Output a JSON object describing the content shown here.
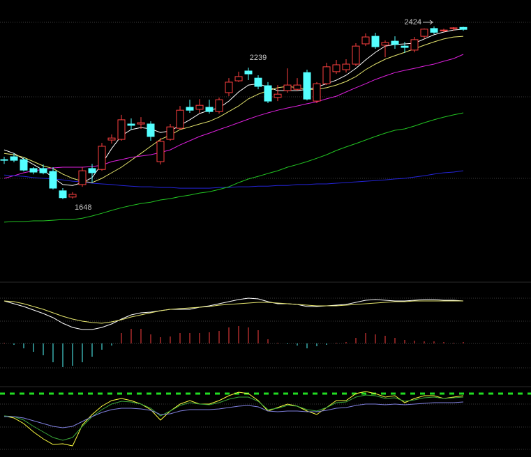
{
  "chart_data": [
    {
      "type": "candlestick",
      "open": [
        1826,
        1839,
        1826,
        1786,
        1786,
        1773,
        1686,
        1658,
        1714,
        1786,
        1782,
        1914,
        1917,
        1986,
        1986,
        1986,
        1817,
        1917,
        1967,
        2061,
        2052,
        2061,
        2042,
        2127,
        2180,
        2224,
        2192,
        2158,
        2105,
        2136,
        2142,
        2217,
        2089,
        2167,
        2221,
        2230,
        2255,
        2346,
        2380,
        2340,
        2358,
        2336,
        2318,
        2380,
        2415,
        2405,
        2415,
        2420
      ],
      "high": [
        1839,
        1854,
        1836,
        1792,
        1804,
        1792,
        1698,
        1680,
        1792,
        1807,
        1901,
        1939,
        2027,
        2011,
        2017,
        1998,
        1923,
        1986,
        2067,
        2095,
        2098,
        2095,
        2105,
        2192,
        2221,
        2239,
        2205,
        2174,
        2161,
        2236,
        2192,
        2230,
        2174,
        2261,
        2274,
        2277,
        2349,
        2393,
        2396,
        2361,
        2380,
        2355,
        2377,
        2415,
        2424,
        2414,
        2421,
        2423
      ],
      "low": [
        1807,
        1814,
        1773,
        1760,
        1760,
        1692,
        1648,
        1651,
        1704,
        1723,
        1776,
        1898,
        1911,
        1961,
        1964,
        1911,
        1804,
        1911,
        1961,
        2036,
        2036,
        2033,
        2033,
        2111,
        2174,
        2183,
        2142,
        2080,
        2089,
        2127,
        2136,
        2092,
        2080,
        2161,
        2211,
        2217,
        2246,
        2336,
        2324,
        2286,
        2324,
        2305,
        2308,
        2368,
        2390,
        2399,
        2405,
        2405
      ],
      "close": [
        1823,
        1823,
        1779,
        1770,
        1767,
        1698,
        1655,
        1670,
        1776,
        1767,
        1886,
        1923,
        2005,
        1980,
        1992,
        1930,
        1908,
        1973,
        2048,
        2048,
        2070,
        2042,
        2095,
        2174,
        2199,
        2211,
        2155,
        2089,
        2120,
        2161,
        2161,
        2098,
        2167,
        2243,
        2252,
        2255,
        2336,
        2377,
        2333,
        2352,
        2343,
        2330,
        2365,
        2412,
        2398,
        2408,
        2418,
        2411
      ],
      "up_color": "#ff4040",
      "down_color": "#54ffff",
      "lines": [
        {
          "color": "#ffffff",
          "values": [
            1870,
            1854,
            1829,
            1804,
            1779,
            1745,
            1714,
            1710,
            1723,
            1745,
            1807,
            1876,
            1933,
            1961,
            1970,
            1964,
            1948,
            1955,
            1980,
            2005,
            2033,
            2048,
            2058,
            2089,
            2130,
            2161,
            2167,
            2152,
            2136,
            2136,
            2136,
            2142,
            2152,
            2167,
            2183,
            2205,
            2236,
            2274,
            2308,
            2336,
            2343,
            2346,
            2349,
            2368,
            2387,
            2399,
            2408,
            2412
          ]
        },
        {
          "color": "#e6e66e",
          "values": [
            1854,
            1848,
            1836,
            1817,
            1798,
            1786,
            1761,
            1742,
            1729,
            1723,
            1742,
            1767,
            1792,
            1823,
            1854,
            1886,
            1917,
            1936,
            1961,
            1973,
            1986,
            1998,
            2017,
            2042,
            2067,
            2099,
            2120,
            2136,
            2149,
            2155,
            2149,
            2142,
            2142,
            2149,
            2161,
            2177,
            2199,
            2230,
            2255,
            2277,
            2293,
            2308,
            2324,
            2340,
            2355,
            2368,
            2377,
            2380
          ]
        },
        {
          "color": "#e020e0",
          "values": [
            1742,
            1754,
            1767,
            1776,
            1782,
            1789,
            1792,
            1792,
            1792,
            1795,
            1801,
            1817,
            1826,
            1836,
            1842,
            1848,
            1858,
            1870,
            1892,
            1911,
            1930,
            1945,
            1961,
            1976,
            1992,
            2008,
            2023,
            2036,
            2048,
            2058,
            2067,
            2077,
            2086,
            2099,
            2111,
            2130,
            2149,
            2167,
            2186,
            2202,
            2217,
            2227,
            2236,
            2246,
            2255,
            2268,
            2280,
            2299
          ]
        },
        {
          "color": "#2424d8",
          "values": [
            1757,
            1754,
            1751,
            1745,
            1742,
            1739,
            1735,
            1729,
            1726,
            1720,
            1717,
            1714,
            1710,
            1707,
            1704,
            1704,
            1701,
            1701,
            1698,
            1698,
            1698,
            1698,
            1701,
            1701,
            1704,
            1704,
            1707,
            1707,
            1710,
            1710,
            1714,
            1714,
            1717,
            1717,
            1720,
            1723,
            1726,
            1729,
            1732,
            1735,
            1739,
            1742,
            1748,
            1754,
            1761,
            1767,
            1770,
            1776
          ]
        },
        {
          "color": "#22c422",
          "values": [
            1545,
            1548,
            1548,
            1551,
            1551,
            1554,
            1557,
            1557,
            1563,
            1573,
            1585,
            1598,
            1610,
            1620,
            1629,
            1635,
            1645,
            1651,
            1660,
            1667,
            1676,
            1682,
            1692,
            1704,
            1723,
            1739,
            1751,
            1764,
            1776,
            1792,
            1804,
            1817,
            1832,
            1848,
            1867,
            1883,
            1898,
            1914,
            1930,
            1945,
            1958,
            1964,
            1977,
            1992,
            2005,
            2017,
            2027,
            2036
          ]
        }
      ],
      "labels": [
        {
          "at": "high",
          "index": 25
        },
        {
          "at": "high",
          "index": 44,
          "arrow": true
        },
        {
          "at": "low",
          "index": 6
        }
      ],
      "ylim": [
        1379,
        2543
      ],
      "yticks": [
        2443,
        2108,
        1742
      ],
      "grid": true
    },
    {
      "type": "macd",
      "histogram": [
        1,
        -2,
        -7,
        -12,
        -17,
        -27,
        -34,
        -32,
        -27,
        -19,
        -9,
        -3,
        15,
        21,
        21,
        13,
        9,
        10,
        15,
        15,
        15,
        16,
        18,
        23,
        25,
        23,
        19,
        6,
        1,
        -1,
        -3,
        -7,
        -4,
        -2,
        1,
        2,
        8,
        15,
        13,
        11,
        8,
        5,
        4,
        3,
        3,
        2,
        1,
        2
      ],
      "up_color": "#ff4040",
      "down_color": "#54ffff",
      "lines": [
        {
          "color": "#ffffff",
          "values": [
            61,
            57,
            53,
            48,
            43,
            37,
            29,
            23,
            20,
            20,
            23,
            28,
            35,
            41,
            44,
            45,
            47,
            49,
            49,
            49,
            52,
            54,
            57,
            60,
            63,
            65,
            64,
            60,
            57,
            57,
            56,
            53,
            53,
            54,
            55,
            56,
            59,
            62,
            63,
            62,
            61,
            61,
            62,
            63,
            63,
            62,
            62,
            61
          ]
        },
        {
          "color": "#e6e66e",
          "values": [
            61,
            60,
            57,
            53,
            49,
            44,
            39,
            35,
            32,
            30,
            29,
            31,
            34,
            38,
            41,
            44,
            47,
            49,
            50,
            51,
            52,
            53,
            55,
            56,
            57,
            58,
            59,
            59,
            58,
            57,
            56,
            55,
            54,
            54,
            54,
            55,
            56,
            57,
            58,
            59,
            60,
            60,
            61,
            61,
            61,
            61,
            61,
            61
          ]
        }
      ],
      "ylim": [
        -62,
        88
      ],
      "yticks": [
        65,
        32,
        0,
        -35
      ],
      "grid": true
    },
    {
      "type": "line",
      "lines": [
        {
          "color": "#ffff40",
          "values": [
            53,
            50,
            42,
            30,
            20,
            12,
            13,
            10,
            40,
            55,
            67,
            75,
            78,
            75,
            70,
            62,
            47,
            60,
            70,
            75,
            70,
            70,
            75,
            82,
            87,
            85,
            75,
            60,
            65,
            70,
            67,
            60,
            55,
            65,
            75,
            75,
            85,
            88,
            85,
            80,
            82,
            72,
            78,
            82,
            82,
            78,
            80,
            82
          ]
        },
        {
          "color": "#3aa83a",
          "values": [
            53,
            52,
            47,
            38,
            30,
            22,
            18,
            22,
            38,
            52,
            62,
            70,
            74,
            73,
            70,
            64,
            53,
            60,
            68,
            72,
            70,
            69,
            72,
            77,
            80,
            80,
            74,
            62,
            64,
            68,
            67,
            62,
            60,
            65,
            72,
            73,
            80,
            83,
            82,
            78,
            79,
            74,
            76,
            79,
            80,
            78,
            79,
            80
          ]
        },
        {
          "color": "#8080e0",
          "values": [
            52,
            52,
            50,
            46,
            42,
            38,
            36,
            38,
            45,
            52,
            58,
            62,
            64,
            64,
            63,
            61,
            55,
            56,
            60,
            62,
            62,
            62,
            63,
            65,
            67,
            68,
            66,
            60,
            59,
            60,
            60,
            59,
            59,
            61,
            64,
            65,
            68,
            70,
            70,
            69,
            70,
            69,
            70,
            71,
            72,
            72,
            72,
            73
          ]
        }
      ],
      "reference_line": {
        "value": 85,
        "color": "#22dd22"
      },
      "ylim": [
        -5,
        95
      ],
      "yticks": [
        70,
        37,
        5
      ],
      "grid": true
    }
  ]
}
